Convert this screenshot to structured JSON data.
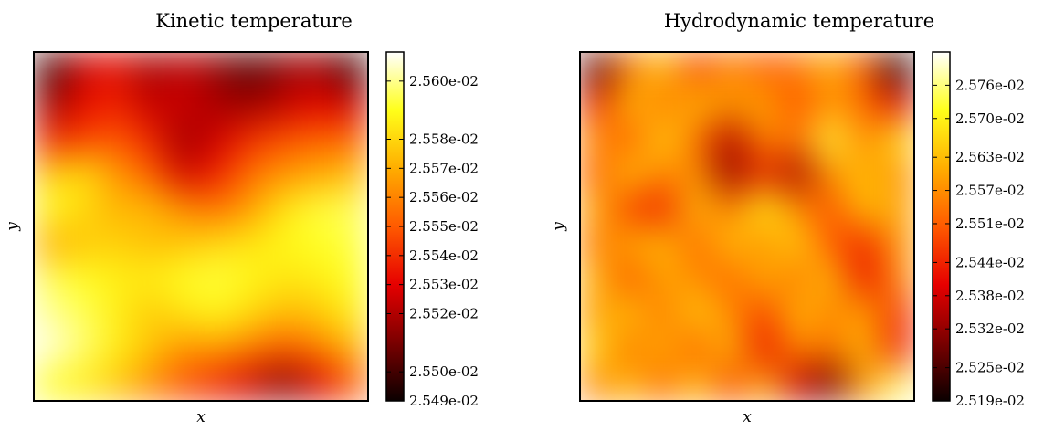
{
  "colormap": {
    "name": "hot",
    "stops": [
      "#0b0000",
      "#7a0000",
      "#e60000",
      "#ff5a00",
      "#ffad00",
      "#ffff1a",
      "#ffffff"
    ]
  },
  "chart_data": [
    {
      "type": "heatmap",
      "title": "Kinetic temperature",
      "xlabel": "x",
      "ylabel": "y",
      "grid": false,
      "colorbar": {
        "range": [
          0.02549,
          0.02561
        ],
        "tick_values": [
          0.02549,
          0.0255,
          0.02552,
          0.02553,
          0.02554,
          0.02555,
          0.02556,
          0.02557,
          0.02558,
          0.0256
        ],
        "tick_labels": [
          "2.549e-02",
          "2.550e-02",
          "2.552e-02",
          "2.553e-02",
          "2.554e-02",
          "2.555e-02",
          "2.556e-02",
          "2.557e-02",
          "2.558e-02",
          "2.560e-02"
        ]
      },
      "grid_values": [
        [
          0.08,
          0.3,
          0.36,
          0.22,
          0.28,
          0.2,
          0.1,
          0.2,
          0.24,
          0.08
        ],
        [
          0.22,
          0.36,
          0.4,
          0.28,
          0.3,
          0.24,
          0.22,
          0.28,
          0.34,
          0.3
        ],
        [
          0.4,
          0.45,
          0.5,
          0.4,
          0.22,
          0.3,
          0.42,
          0.48,
          0.52,
          0.52
        ],
        [
          0.72,
          0.78,
          0.62,
          0.52,
          0.3,
          0.4,
          0.55,
          0.62,
          0.66,
          0.7
        ],
        [
          0.84,
          0.76,
          0.68,
          0.7,
          0.6,
          0.55,
          0.64,
          0.78,
          0.86,
          0.88
        ],
        [
          0.66,
          0.72,
          0.74,
          0.7,
          0.72,
          0.76,
          0.78,
          0.82,
          0.84,
          0.86
        ],
        [
          0.88,
          0.84,
          0.8,
          0.8,
          0.84,
          0.86,
          0.82,
          0.78,
          0.8,
          0.84
        ],
        [
          0.92,
          0.88,
          0.8,
          0.72,
          0.78,
          0.82,
          0.76,
          0.7,
          0.72,
          0.8
        ],
        [
          0.98,
          0.9,
          0.8,
          0.72,
          0.62,
          0.64,
          0.58,
          0.5,
          0.58,
          0.68
        ],
        [
          0.84,
          0.8,
          0.72,
          0.6,
          0.48,
          0.4,
          0.3,
          0.18,
          0.32,
          0.5
        ]
      ]
    },
    {
      "type": "heatmap",
      "title": "Hydrodynamic temperature",
      "xlabel": "x",
      "ylabel": "y",
      "grid": false,
      "colorbar": {
        "range": [
          0.02519,
          0.02582
        ],
        "tick_values": [
          0.02519,
          0.02525,
          0.02532,
          0.02538,
          0.02544,
          0.02551,
          0.02557,
          0.02563,
          0.0257,
          0.02576
        ],
        "tick_labels": [
          "2.519e-02",
          "2.525e-02",
          "2.532e-02",
          "2.538e-02",
          "2.544e-02",
          "2.551e-02",
          "2.557e-02",
          "2.563e-02",
          "2.570e-02",
          "2.576e-02"
        ]
      },
      "grid_values": [
        [
          0.12,
          0.55,
          0.72,
          0.45,
          0.6,
          0.5,
          0.55,
          0.68,
          0.5,
          0.05
        ],
        [
          0.4,
          0.72,
          0.55,
          0.7,
          0.62,
          0.66,
          0.48,
          0.62,
          0.55,
          0.35
        ],
        [
          0.62,
          0.5,
          0.75,
          0.55,
          0.25,
          0.6,
          0.55,
          0.86,
          0.58,
          0.78
        ],
        [
          0.5,
          0.72,
          0.58,
          0.62,
          0.2,
          0.42,
          0.22,
          0.62,
          0.7,
          0.6
        ],
        [
          0.68,
          0.45,
          0.38,
          0.72,
          0.55,
          0.82,
          0.6,
          0.48,
          0.72,
          0.65
        ],
        [
          0.55,
          0.66,
          0.7,
          0.52,
          0.72,
          0.6,
          0.75,
          0.5,
          0.4,
          0.62
        ],
        [
          0.7,
          0.48,
          0.66,
          0.6,
          0.52,
          0.68,
          0.55,
          0.72,
          0.35,
          0.6
        ],
        [
          0.62,
          0.72,
          0.55,
          0.74,
          0.6,
          0.45,
          0.7,
          0.58,
          0.66,
          0.42
        ],
        [
          0.76,
          0.55,
          0.68,
          0.5,
          0.72,
          0.35,
          0.6,
          0.55,
          0.7,
          0.38
        ],
        [
          0.58,
          0.7,
          0.52,
          0.72,
          0.45,
          0.68,
          0.3,
          0.15,
          0.62,
          0.9
        ]
      ]
    }
  ]
}
